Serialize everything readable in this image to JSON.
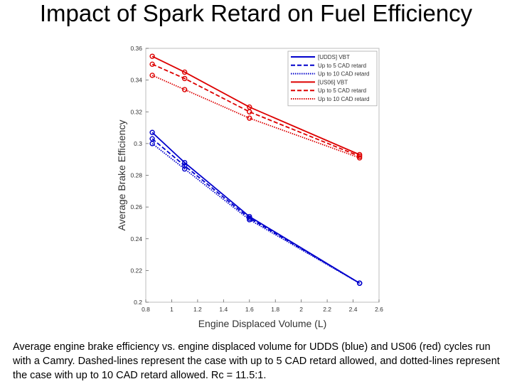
{
  "slide": {
    "title": "Impact of Spark Retard on Fuel Efficiency",
    "caption": "Average engine brake efficiency vs. engine displaced volume for UDDS (blue) and US06 (red) cycles run with a Camry. Dashed-lines represent the case with up to 5 CAD retard allowed, and dotted-lines represent the case with up to 10 CAD retard allowed. Rc = 11.5:1."
  },
  "chart_data": {
    "type": "line",
    "title": "",
    "xlabel": "Engine Displaced Volume (L)",
    "ylabel": "Average Brake Efficiency",
    "xlim": [
      0.8,
      2.6
    ],
    "ylim": [
      0.2,
      0.36
    ],
    "xticks": [
      "0.8",
      "1",
      "1.2",
      "1.4",
      "1.6",
      "1.8",
      "2",
      "2.2",
      "2.4",
      "2.6"
    ],
    "yticks": [
      "0.2",
      "0.22",
      "0.24",
      "0.26",
      "0.28",
      "0.3",
      "0.32",
      "0.34",
      "0.36"
    ],
    "legend_position": "top-right",
    "grid": false,
    "series": [
      {
        "name": "[UDDS] VBT",
        "color": "#0000cc",
        "dash": "solid",
        "x": [
          0.85,
          1.1,
          1.6,
          2.45
        ],
        "y": [
          0.307,
          0.288,
          0.254,
          0.212
        ]
      },
      {
        "name": "Up to 5 CAD retard",
        "color": "#0000cc",
        "dash": "dashed",
        "x": [
          0.85,
          1.1,
          1.6,
          2.45
        ],
        "y": [
          0.303,
          0.286,
          0.253,
          0.212
        ]
      },
      {
        "name": "Up to 10 CAD retard",
        "color": "#0000cc",
        "dash": "dotted",
        "x": [
          0.85,
          1.1,
          1.6,
          2.45
        ],
        "y": [
          0.3,
          0.284,
          0.252,
          0.212
        ]
      },
      {
        "name": "[US06] VBT",
        "color": "#dd0000",
        "dash": "solid",
        "x": [
          0.85,
          1.1,
          1.6,
          2.45
        ],
        "y": [
          0.355,
          0.345,
          0.323,
          0.293
        ]
      },
      {
        "name": "Up to 5 CAD retard",
        "color": "#dd0000",
        "dash": "dashed",
        "x": [
          0.85,
          1.1,
          1.6,
          2.45
        ],
        "y": [
          0.35,
          0.341,
          0.32,
          0.292
        ]
      },
      {
        "name": "Up to 10 CAD retard",
        "color": "#dd0000",
        "dash": "dotted",
        "x": [
          0.85,
          1.1,
          1.6,
          2.45
        ],
        "y": [
          0.343,
          0.334,
          0.316,
          0.291
        ]
      }
    ]
  }
}
